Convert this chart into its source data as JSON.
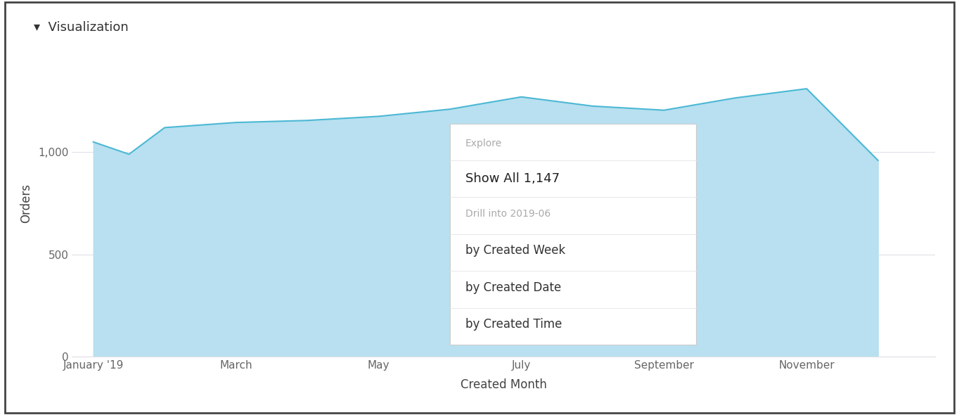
{
  "title": "Visualization",
  "xlabel": "Created Month",
  "ylabel": "Orders",
  "background_color": "#ffffff",
  "chart_bg_color": "#ffffff",
  "area_fill_color": "#b8e0f0",
  "line_color": "#4cb8d4",
  "x_data": [
    0,
    0.5,
    1,
    2,
    3,
    4,
    5,
    6,
    7,
    8,
    9,
    10,
    11
  ],
  "y_values": [
    1050,
    990,
    1120,
    1145,
    1155,
    1175,
    1210,
    1270,
    1225,
    1205,
    1265,
    1310,
    960
  ],
  "yticks": [
    0,
    500,
    1000
  ],
  "ytick_labels": [
    "0",
    "500",
    "1,000"
  ],
  "ylim": [
    0,
    1500
  ],
  "xlim": [
    -0.3,
    11.8
  ],
  "x_tick_positions": [
    0,
    2,
    4,
    6,
    8,
    10
  ],
  "x_labels": [
    "January '19",
    "March",
    "May",
    "July",
    "September",
    "November"
  ],
  "grid_color": "#e0e0e8",
  "tick_label_color": "#666666",
  "axis_label_color": "#444444",
  "title_color": "#333333",
  "title_fontsize": 13,
  "axis_label_fontsize": 12,
  "tick_fontsize": 11,
  "popup_bg": "#ffffff",
  "popup_border_color": "#cccccc",
  "popup_title": "Explore",
  "popup_title_color": "#aaaaaa",
  "popup_item1": "Show All 1,147",
  "popup_item1_color": "#222222",
  "popup_section2": "Drill into 2019-06",
  "popup_section2_color": "#aaaaaa",
  "popup_item2": "by Created Week",
  "popup_item3": "by Created Date",
  "popup_item4": "by Created Time",
  "popup_item_color": "#333333",
  "outer_border_color": "#444444",
  "outer_border_linewidth": 2
}
